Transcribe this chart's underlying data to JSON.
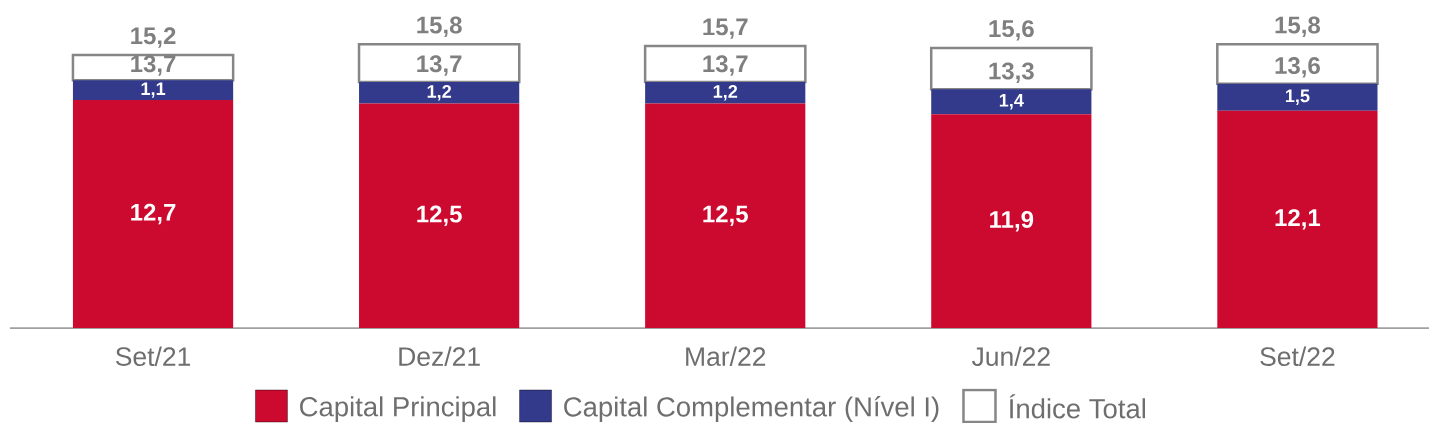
{
  "chart_data": {
    "type": "bar",
    "stacked": true,
    "categories": [
      "Set/21",
      "Dez/21",
      "Mar/22",
      "Jun/22",
      "Set/22"
    ],
    "series": [
      {
        "name": "Capital Principal",
        "color": "#cc0a2f",
        "values": [
          12.7,
          12.5,
          12.5,
          11.9,
          12.1
        ],
        "value_labels": [
          "12,7",
          "12,5",
          "12,5",
          "11,9",
          "12,1"
        ]
      },
      {
        "name": "Capital Complementar (Nível I)",
        "color": "#333a8c",
        "values": [
          1.1,
          1.2,
          1.2,
          1.4,
          1.5
        ],
        "value_labels": [
          "1,1",
          "1,2",
          "1,2",
          "1,4",
          "1,5"
        ]
      },
      {
        "name": "Índice Total",
        "color": "#ffffff",
        "values": [
          1.4,
          2.1,
          2.0,
          2.3,
          2.2
        ]
      }
    ],
    "totals": [
      "15,2",
      "15,8",
      "15,7",
      "15,6",
      "15,8"
    ],
    "annotations": [
      {
        "text": "13,7",
        "x": "Set/21",
        "y": 13.7
      },
      {
        "text": "13,7",
        "x": "Dez/21",
        "y": 13.7
      },
      {
        "text": "13,7",
        "x": "Mar/22",
        "y": 13.7
      },
      {
        "text": "13,3",
        "x": "Jun/22",
        "y": 13.3
      },
      {
        "text": "13,6",
        "x": "Set/22",
        "y": 13.6
      }
    ],
    "legend": "bottom"
  }
}
